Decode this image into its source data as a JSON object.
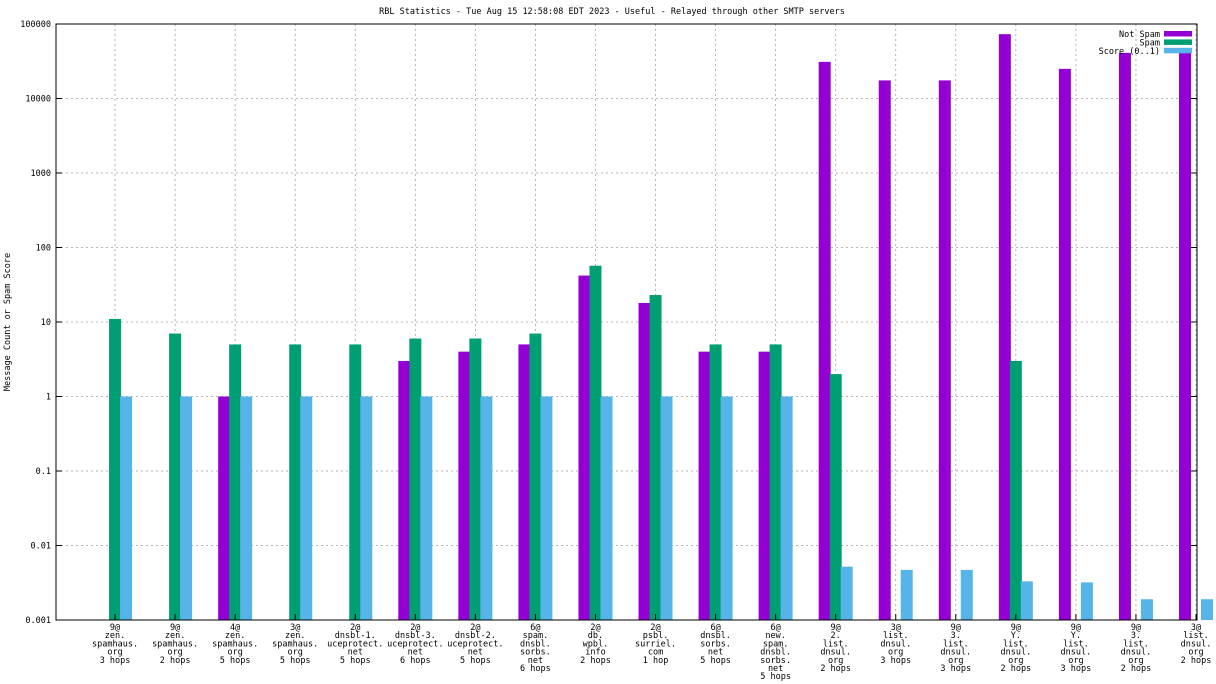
{
  "chart_data": {
    "type": "bar",
    "title": "RBL Statistics - Tue Aug 15 12:58:08 EDT 2023 - Useful - Relayed through other SMTP servers",
    "ylabel": "Message Count or Spam Score",
    "xlabel": "",
    "yscale": "log",
    "ylim": [
      0.001,
      100000
    ],
    "yticks": [
      "0.001",
      "0.01",
      "0.1",
      "1",
      "10",
      "100",
      "1000",
      "10000",
      "100000"
    ],
    "grid": true,
    "legend_position": "top-right",
    "categories": [
      [
        "9@",
        "zen.",
        "spamhaus.",
        "org",
        "3 hops"
      ],
      [
        "9@",
        "zen.",
        "spamhaus.",
        "org",
        "2 hops"
      ],
      [
        "4@",
        "zen.",
        "spamhaus.",
        "org",
        "5 hops"
      ],
      [
        "3@",
        "zen.",
        "spamhaus.",
        "org",
        "5 hops"
      ],
      [
        "2@",
        "dnsbl-1.",
        "uceprotect.",
        "net",
        "5 hops"
      ],
      [
        "2@",
        "dnsbl-3.",
        "uceprotect.",
        "net",
        "6 hops"
      ],
      [
        "2@",
        "dnsbl-2.",
        "uceprotect.",
        "net",
        "5 hops"
      ],
      [
        "6@",
        "spam.",
        "dnsbl.",
        "sorbs.",
        "net",
        "6 hops"
      ],
      [
        "2@",
        "db.",
        "wpbl.",
        "info",
        "2 hops"
      ],
      [
        "2@",
        "psbl.",
        "surriel.",
        "com",
        "1 hop"
      ],
      [
        "6@",
        "dnsbl.",
        "sorbs.",
        "net",
        "5 hops"
      ],
      [
        "6@",
        "new.",
        "spam.",
        "dnsbl.",
        "sorbs.",
        "net",
        "5 hops"
      ],
      [
        "9@",
        "2.",
        "list.",
        "dnsul.",
        "org",
        "2 hops"
      ],
      [
        "3@",
        "list.",
        "dnsul.",
        "org",
        "3 hops"
      ],
      [
        "9@",
        "3.",
        "list.",
        "dnsul.",
        "org",
        "3 hops"
      ],
      [
        "9@",
        "Y.",
        "list.",
        "dnsul.",
        "org",
        "2 hops"
      ],
      [
        "9@",
        "Y.",
        "list.",
        "dnsul.",
        "org",
        "3 hops"
      ],
      [
        "9@",
        "3.",
        "list.",
        "dnsul.",
        "org",
        "2 hops"
      ],
      [
        "3@",
        "list.",
        "dnsul.",
        "org",
        "2 hops"
      ]
    ],
    "series": [
      {
        "name": "Not Spam",
        "color": "#9400d3",
        "values": [
          null,
          null,
          1,
          null,
          null,
          3,
          4,
          5,
          42,
          18,
          4,
          4,
          31000,
          17500,
          17500,
          73000,
          25000,
          41000,
          41000
        ]
      },
      {
        "name": "Spam",
        "color": "#009e73",
        "values": [
          11,
          7,
          5,
          5,
          5,
          6,
          6,
          7,
          57,
          23,
          5,
          5,
          2,
          null,
          null,
          3,
          null,
          null,
          null
        ]
      },
      {
        "name": "Score (0..1)",
        "color": "#56b4e9",
        "values": [
          1,
          1,
          1,
          1,
          1,
          1,
          1,
          1,
          1,
          1,
          1,
          1,
          0.0052,
          0.0047,
          0.0047,
          0.0033,
          0.0032,
          0.0019,
          0.0019
        ]
      }
    ]
  }
}
